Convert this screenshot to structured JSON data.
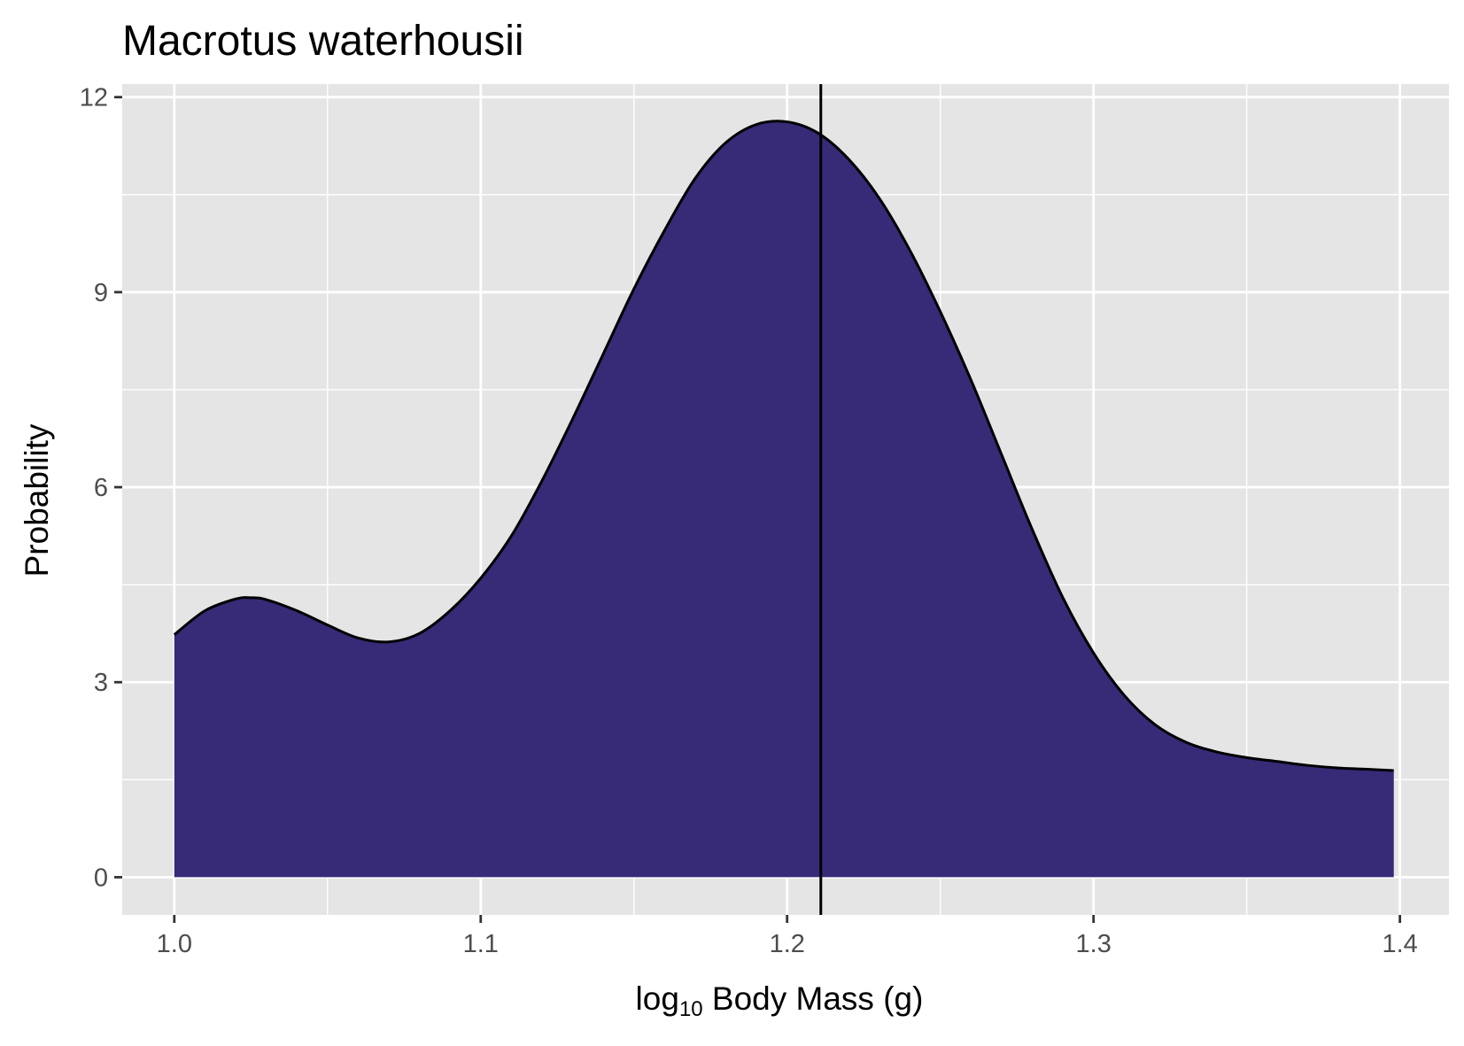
{
  "chart_data": {
    "type": "area",
    "title": "Macrotus waterhousii",
    "xlabel": {
      "prefix": "log",
      "subscript": "10",
      "suffix": " Body Mass (g)"
    },
    "ylabel": "Probability",
    "xlim": [
      0.983,
      1.416
    ],
    "ylim": [
      -0.58,
      12.2
    ],
    "x_ticks": [
      1.0,
      1.1,
      1.2,
      1.3,
      1.4
    ],
    "x_tick_labels": [
      "1.0",
      "1.1",
      "1.2",
      "1.3",
      "1.4"
    ],
    "y_ticks": [
      0,
      3,
      6,
      9,
      12
    ],
    "y_tick_labels": [
      "0",
      "3",
      "6",
      "9",
      "12"
    ],
    "grid": true,
    "vline": 1.211,
    "colors": {
      "fill": "#372a77",
      "panel": "#e5e5e5",
      "gridline": "#ffffff",
      "line": "#000000"
    },
    "series": [
      {
        "x": [
          1.0,
          1.01,
          1.02,
          1.025,
          1.03,
          1.04,
          1.05,
          1.06,
          1.07,
          1.08,
          1.09,
          1.1,
          1.11,
          1.12,
          1.13,
          1.14,
          1.15,
          1.16,
          1.17,
          1.18,
          1.19,
          1.2,
          1.21,
          1.22,
          1.23,
          1.24,
          1.25,
          1.26,
          1.27,
          1.28,
          1.29,
          1.3,
          1.31,
          1.32,
          1.33,
          1.34,
          1.35,
          1.36,
          1.37,
          1.38,
          1.39,
          1.398
        ],
        "y": [
          3.73,
          4.1,
          4.28,
          4.3,
          4.27,
          4.1,
          3.88,
          3.68,
          3.62,
          3.75,
          4.1,
          4.6,
          5.25,
          6.1,
          7.05,
          8.05,
          9.05,
          9.95,
          10.75,
          11.3,
          11.58,
          11.62,
          11.45,
          11.05,
          10.45,
          9.65,
          8.7,
          7.65,
          6.5,
          5.35,
          4.3,
          3.45,
          2.8,
          2.35,
          2.08,
          1.93,
          1.84,
          1.78,
          1.72,
          1.68,
          1.66,
          1.64
        ]
      }
    ]
  }
}
